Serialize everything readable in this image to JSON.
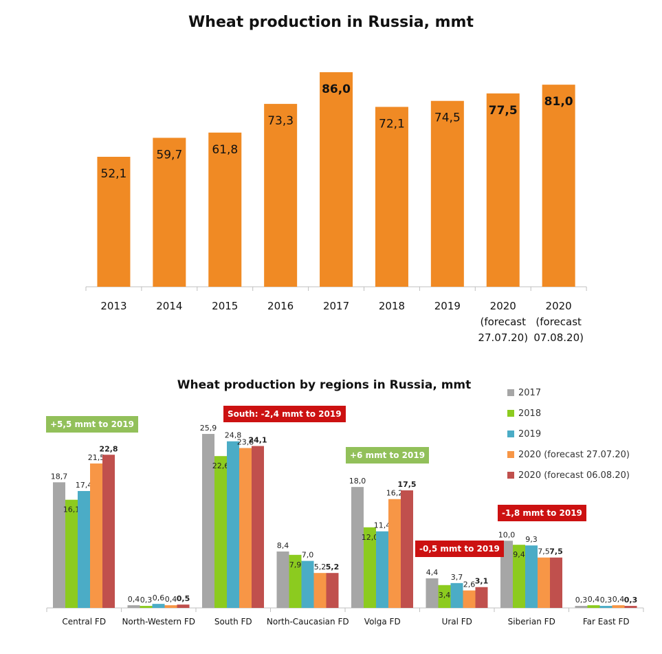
{
  "chart_data": [
    {
      "type": "bar",
      "title": "Wheat production in Russia, mmt",
      "categories": [
        "2013",
        "2014",
        "2015",
        "2016",
        "2017",
        "2018",
        "2019",
        "2020 (forecast 27.07.20)",
        "2020 (forecast 07.08.20)"
      ],
      "category_lines": [
        [
          "2013"
        ],
        [
          "2014"
        ],
        [
          "2015"
        ],
        [
          "2016"
        ],
        [
          "2017"
        ],
        [
          "2018"
        ],
        [
          "2019"
        ],
        [
          "2020",
          "(forecast",
          "27.07.20)"
        ],
        [
          "2020",
          "(forecast",
          "07.08.20)"
        ]
      ],
      "values": [
        52.1,
        59.7,
        61.8,
        73.3,
        86.0,
        72.1,
        74.5,
        77.5,
        81.0
      ],
      "data_labels": [
        "52,1",
        "59,7",
        "61,8",
        "73,3",
        "86,0",
        "72,1",
        "74,5",
        "77,5",
        "81,0"
      ],
      "bold_labels": [
        false,
        false,
        false,
        false,
        true,
        false,
        false,
        true,
        true
      ],
      "color": "#F08A24",
      "ylim": [
        0,
        86
      ]
    },
    {
      "type": "bar",
      "title": "Wheat production by regions in Russia, mmt",
      "categories": [
        "Central FD",
        "North-Western FD",
        "South FD",
        "North-Caucasian FD",
        "Volga FD",
        "Ural FD",
        "Siberian FD",
        "Far East FD"
      ],
      "series": [
        {
          "name": "2017",
          "color": "#A6A6A6",
          "values": [
            18.7,
            0.4,
            25.9,
            8.4,
            18.0,
            4.4,
            10.0,
            0.3
          ],
          "labels": [
            "18,7",
            "0,4",
            "25,9",
            "8,4",
            "18,0",
            "4,4",
            "10,0",
            "0,3"
          ],
          "bold": false
        },
        {
          "name": "2018",
          "color": "#8CCB1F",
          "values": [
            16.1,
            0.3,
            22.6,
            7.9,
            12.0,
            3.4,
            9.4,
            0.4
          ],
          "labels": [
            "16,1",
            "0,3",
            "22,6",
            "7,9",
            "12,0",
            "3,4",
            "9,4",
            "0,4"
          ],
          "bold": false
        },
        {
          "name": "2019",
          "color": "#4BACC6",
          "values": [
            17.4,
            0.6,
            24.8,
            7.0,
            11.4,
            3.7,
            9.3,
            0.3
          ],
          "labels": [
            "17,4",
            "0,6",
            "24,8",
            "7,0",
            "11,4",
            "3,7",
            "9,3",
            "0,3"
          ],
          "bold": false
        },
        {
          "name": "2020 (forecast 27.07.20)",
          "color": "#F79646",
          "values": [
            21.5,
            0.4,
            23.8,
            5.2,
            16.2,
            2.6,
            7.5,
            0.4
          ],
          "labels": [
            "21,5",
            "0,4",
            "23,8",
            "5,2",
            "16,2",
            "2,6",
            "7,5",
            "0,4"
          ],
          "bold": false
        },
        {
          "name": "2020 (forecast 06.08.20)",
          "color": "#C0504D",
          "values": [
            22.8,
            0.5,
            24.1,
            5.2,
            17.5,
            3.1,
            7.5,
            0.3
          ],
          "labels": [
            "22,8",
            "0,5",
            "24,1",
            "5,2",
            "17,5",
            "3,1",
            "7,5",
            "0,3"
          ],
          "bold": true
        }
      ],
      "callouts": [
        {
          "text": "+5,5 mmt to 2019",
          "color": "#92C05A"
        },
        {
          "text": "South: -2,4 mmt to 2019",
          "color": "#CC1111"
        },
        {
          "text": "+6 mmt to 2019",
          "color": "#92C05A"
        },
        {
          "text": "-0,5 mmt to 2019",
          "color": "#CC1111"
        },
        {
          "text": "-1,8 mmt to 2019",
          "color": "#CC1111"
        }
      ],
      "legend_position": "right",
      "ylim": [
        0,
        26
      ]
    }
  ]
}
